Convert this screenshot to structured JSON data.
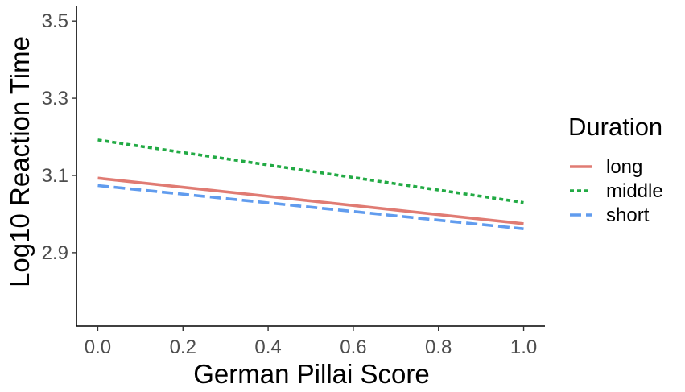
{
  "chart_data": {
    "type": "line",
    "title": "",
    "xlabel": "German Pillai Score",
    "ylabel": "Log10 Reaction Time",
    "xlim": [
      -0.05,
      1.05
    ],
    "ylim": [
      2.71,
      3.54
    ],
    "x_ticks": [
      0.0,
      0.2,
      0.4,
      0.6,
      0.8,
      1.0
    ],
    "x_tick_labels": [
      "0.0",
      "0.2",
      "0.4",
      "0.6",
      "0.8",
      "1.0"
    ],
    "y_ticks": [
      2.9,
      3.1,
      3.3,
      3.5
    ],
    "y_tick_labels": [
      "2.9",
      "3.1",
      "3.3",
      "3.5"
    ],
    "grid": false,
    "legend": {
      "title": "Duration",
      "position": "right"
    },
    "series": [
      {
        "name": "long",
        "x": [
          0.0,
          1.0
        ],
        "y": [
          3.093,
          2.975
        ],
        "color": "#e07b73",
        "dash": "solid"
      },
      {
        "name": "middle",
        "x": [
          0.0,
          1.0
        ],
        "y": [
          3.192,
          3.03
        ],
        "color": "#22aa44",
        "dash": "dotted"
      },
      {
        "name": "short",
        "x": [
          0.0,
          1.0
        ],
        "y": [
          3.074,
          2.962
        ],
        "color": "#619cee",
        "dash": "dashed"
      }
    ]
  }
}
